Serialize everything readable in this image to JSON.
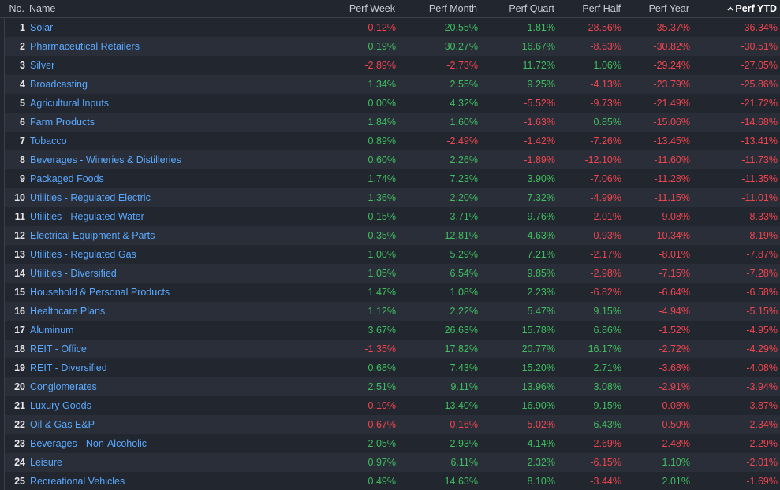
{
  "columns": {
    "no": "No.",
    "name": "Name",
    "week": "Perf Week",
    "month": "Perf Month",
    "quart": "Perf Quart",
    "half": "Perf Half",
    "year": "Perf Year",
    "ytd": "Perf YTD"
  },
  "sort": {
    "column": "ytd",
    "direction": "ascending",
    "icon": "chevron-up-icon"
  },
  "colors": {
    "positive": "#3fbf5f",
    "negative": "#f0454f",
    "link": "#5aa9ff"
  },
  "rows": [
    {
      "no": "1",
      "name": "Solar",
      "week": "-0.12%",
      "month": "20.55%",
      "quart": "1.81%",
      "half": "-28.56%",
      "year": "-35.37%",
      "ytd": "-36.34%"
    },
    {
      "no": "2",
      "name": "Pharmaceutical Retailers",
      "week": "0.19%",
      "month": "30.27%",
      "quart": "16.67%",
      "half": "-8.63%",
      "year": "-30.82%",
      "ytd": "-30.51%"
    },
    {
      "no": "3",
      "name": "Silver",
      "week": "-2.89%",
      "month": "-2.73%",
      "quart": "11.72%",
      "half": "1.06%",
      "year": "-29.24%",
      "ytd": "-27.05%"
    },
    {
      "no": "4",
      "name": "Broadcasting",
      "week": "1.34%",
      "month": "2.55%",
      "quart": "9.25%",
      "half": "-4.13%",
      "year": "-23.79%",
      "ytd": "-25.86%"
    },
    {
      "no": "5",
      "name": "Agricultural Inputs",
      "week": "0.00%",
      "month": "4.32%",
      "quart": "-5.52%",
      "half": "-9.73%",
      "year": "-21.49%",
      "ytd": "-21.72%"
    },
    {
      "no": "6",
      "name": "Farm Products",
      "week": "1.84%",
      "month": "1.60%",
      "quart": "-1.63%",
      "half": "0.85%",
      "year": "-15.06%",
      "ytd": "-14.68%"
    },
    {
      "no": "7",
      "name": "Tobacco",
      "week": "0.89%",
      "month": "-2.49%",
      "quart": "-1.42%",
      "half": "-7.26%",
      "year": "-13.45%",
      "ytd": "-13.41%"
    },
    {
      "no": "8",
      "name": "Beverages - Wineries & Distilleries",
      "week": "0.60%",
      "month": "2.26%",
      "quart": "-1.89%",
      "half": "-12.10%",
      "year": "-11.60%",
      "ytd": "-11.73%"
    },
    {
      "no": "9",
      "name": "Packaged Foods",
      "week": "1.74%",
      "month": "7.23%",
      "quart": "3.90%",
      "half": "-7.06%",
      "year": "-11.28%",
      "ytd": "-11.35%"
    },
    {
      "no": "10",
      "name": "Utilities - Regulated Electric",
      "week": "1.36%",
      "month": "2.20%",
      "quart": "7.32%",
      "half": "-4.99%",
      "year": "-11.15%",
      "ytd": "-11.01%"
    },
    {
      "no": "11",
      "name": "Utilities - Regulated Water",
      "week": "0.15%",
      "month": "3.71%",
      "quart": "9.76%",
      "half": "-2.01%",
      "year": "-9.08%",
      "ytd": "-8.33%"
    },
    {
      "no": "12",
      "name": "Electrical Equipment & Parts",
      "week": "0.35%",
      "month": "12.81%",
      "quart": "4.63%",
      "half": "-0.93%",
      "year": "-10.34%",
      "ytd": "-8.19%"
    },
    {
      "no": "13",
      "name": "Utilities - Regulated Gas",
      "week": "1.00%",
      "month": "5.29%",
      "quart": "7.21%",
      "half": "-2.17%",
      "year": "-8.01%",
      "ytd": "-7.87%"
    },
    {
      "no": "14",
      "name": "Utilities - Diversified",
      "week": "1.05%",
      "month": "6.54%",
      "quart": "9.85%",
      "half": "-2.98%",
      "year": "-7.15%",
      "ytd": "-7.28%"
    },
    {
      "no": "15",
      "name": "Household & Personal Products",
      "week": "1.47%",
      "month": "1.08%",
      "quart": "2.23%",
      "half": "-6.82%",
      "year": "-6.64%",
      "ytd": "-6.58%"
    },
    {
      "no": "16",
      "name": "Healthcare Plans",
      "week": "1.12%",
      "month": "2.22%",
      "quart": "5.47%",
      "half": "9.15%",
      "year": "-4.94%",
      "ytd": "-5.15%"
    },
    {
      "no": "17",
      "name": "Aluminum",
      "week": "3.67%",
      "month": "26.63%",
      "quart": "15.78%",
      "half": "6.86%",
      "year": "-1.52%",
      "ytd": "-4.95%"
    },
    {
      "no": "18",
      "name": "REIT - Office",
      "week": "-1.35%",
      "month": "17.82%",
      "quart": "20.77%",
      "half": "16.17%",
      "year": "-2.72%",
      "ytd": "-4.29%"
    },
    {
      "no": "19",
      "name": "REIT - Diversified",
      "week": "0.68%",
      "month": "7.43%",
      "quart": "15.20%",
      "half": "2.71%",
      "year": "-3.68%",
      "ytd": "-4.08%"
    },
    {
      "no": "20",
      "name": "Conglomerates",
      "week": "2.51%",
      "month": "9.11%",
      "quart": "13.96%",
      "half": "3.08%",
      "year": "-2.91%",
      "ytd": "-3.94%"
    },
    {
      "no": "21",
      "name": "Luxury Goods",
      "week": "-0.10%",
      "month": "13.40%",
      "quart": "16.90%",
      "half": "9.15%",
      "year": "-0.08%",
      "ytd": "-3.87%"
    },
    {
      "no": "22",
      "name": "Oil & Gas E&P",
      "week": "-0.67%",
      "month": "-0.16%",
      "quart": "-5.02%",
      "half": "6.43%",
      "year": "-0.50%",
      "ytd": "-2.34%"
    },
    {
      "no": "23",
      "name": "Beverages - Non-Alcoholic",
      "week": "2.05%",
      "month": "2.93%",
      "quart": "4.14%",
      "half": "-2.69%",
      "year": "-2.48%",
      "ytd": "-2.29%"
    },
    {
      "no": "24",
      "name": "Leisure",
      "week": "0.97%",
      "month": "6.11%",
      "quart": "2.32%",
      "half": "-6.15%",
      "year": "1.10%",
      "ytd": "-2.01%"
    },
    {
      "no": "25",
      "name": "Recreational Vehicles",
      "week": "0.49%",
      "month": "14.63%",
      "quart": "8.10%",
      "half": "-3.44%",
      "year": "2.01%",
      "ytd": "-1.69%"
    }
  ]
}
